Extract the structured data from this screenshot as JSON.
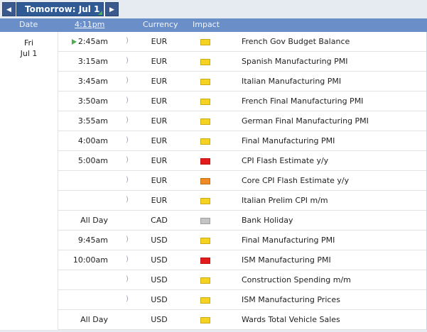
{
  "toolbar": {
    "prev_icon": "◀",
    "next_icon": "▶",
    "day_label": "Tomorrow: Jul 1"
  },
  "header": {
    "date": "Date",
    "time": "4:11pm",
    "currency": "Currency",
    "impact": "Impact"
  },
  "date_cell": {
    "weekday": "Fri",
    "day": "Jul 1"
  },
  "sound_icon": "🔈",
  "colors": {
    "header_bg": "#6a8ec8",
    "tab_bg": "#2f5a94",
    "impact_high": "#e31b1b",
    "impact_medium": "#f08a24",
    "impact_low": "#f5d21f",
    "impact_holiday": "#c4c4c4"
  },
  "events": [
    {
      "time": "2:45am",
      "currency": "EUR",
      "impact": "low",
      "name": "French Gov Budget Balance",
      "next": true,
      "sound": true
    },
    {
      "time": "3:15am",
      "currency": "EUR",
      "impact": "low",
      "name": "Spanish Manufacturing PMI",
      "sound": true
    },
    {
      "time": "3:45am",
      "currency": "EUR",
      "impact": "low",
      "name": "Italian Manufacturing PMI",
      "sound": true
    },
    {
      "time": "3:50am",
      "currency": "EUR",
      "impact": "low",
      "name": "French Final Manufacturing PMI",
      "sound": true
    },
    {
      "time": "3:55am",
      "currency": "EUR",
      "impact": "low",
      "name": "German Final Manufacturing PMI",
      "sound": true
    },
    {
      "time": "4:00am",
      "currency": "EUR",
      "impact": "low",
      "name": "Final Manufacturing PMI",
      "sound": true
    },
    {
      "time": "5:00am",
      "currency": "EUR",
      "impact": "high",
      "name": "CPI Flash Estimate y/y",
      "sound": true
    },
    {
      "time": "",
      "currency": "EUR",
      "impact": "medium",
      "name": "Core CPI Flash Estimate y/y",
      "sound": true
    },
    {
      "time": "",
      "currency": "EUR",
      "impact": "low",
      "name": "Italian Prelim CPI m/m",
      "sound": true
    },
    {
      "time": "All Day",
      "currency": "CAD",
      "impact": "holiday",
      "name": "Bank Holiday",
      "sound": false
    },
    {
      "time": "9:45am",
      "currency": "USD",
      "impact": "low",
      "name": "Final Manufacturing PMI",
      "sound": true
    },
    {
      "time": "10:00am",
      "currency": "USD",
      "impact": "high",
      "name": "ISM Manufacturing PMI",
      "sound": true
    },
    {
      "time": "",
      "currency": "USD",
      "impact": "low",
      "name": "Construction Spending m/m",
      "sound": true
    },
    {
      "time": "",
      "currency": "USD",
      "impact": "low",
      "name": "ISM Manufacturing Prices",
      "sound": true
    },
    {
      "time": "All Day",
      "currency": "USD",
      "impact": "low",
      "name": "Wards Total Vehicle Sales",
      "sound": false
    }
  ]
}
